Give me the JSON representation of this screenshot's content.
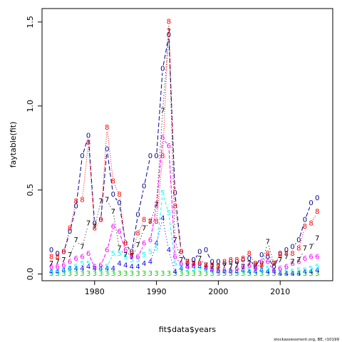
{
  "chart_data": {
    "type": "line",
    "xlabel": "fit$data$years",
    "ylabel": "faytable(fit)",
    "caption": "stockassessment.org, BE, r10199",
    "xlim": [
      1971.5,
      2018.5
    ],
    "ylim": [
      -0.04,
      1.58
    ],
    "x_ticks": [
      1980,
      1990,
      2000,
      2010
    ],
    "y_ticks": [
      0.0,
      0.5,
      1.0,
      1.5
    ],
    "y_tick_labels": [
      "0.0",
      "0.5",
      "1.0",
      "1.5"
    ],
    "x": [
      1973,
      1974,
      1975,
      1976,
      1977,
      1978,
      1979,
      1980,
      1981,
      1982,
      1983,
      1984,
      1985,
      1986,
      1987,
      1988,
      1989,
      1990,
      1991,
      1992,
      1993,
      1994,
      1995,
      1996,
      1997,
      1998,
      1999,
      2000,
      2001,
      2002,
      2003,
      2004,
      2005,
      2006,
      2007,
      2008,
      2009,
      2010,
      2011,
      2012,
      2013,
      2014,
      2015,
      2016,
      2017
    ],
    "series": [
      {
        "name": "0",
        "color": "#00008b",
        "values": [
          0.14,
          0.12,
          0.13,
          0.25,
          0.4,
          0.7,
          0.82,
          0.3,
          0.32,
          0.74,
          0.47,
          0.42,
          0.18,
          0.13,
          0.35,
          0.52,
          0.7,
          0.7,
          1.22,
          1.42,
          0.48,
          0.13,
          0.06,
          0.08,
          0.13,
          0.14,
          0.07,
          0.07,
          0.06,
          0.07,
          0.07,
          0.08,
          0.09,
          0.04,
          0.11,
          0.1,
          0.04,
          0.12,
          0.14,
          0.16,
          0.2,
          0.32,
          0.42,
          0.45,
          null
        ]
      },
      {
        "name": "3",
        "color": "#00cc00",
        "values": [
          0.0,
          0.0,
          0.0,
          0.0,
          0.0,
          0.0,
          0.0,
          0.0,
          0.0,
          0.0,
          0.0,
          0.0,
          0.0,
          0.0,
          0.0,
          0.0,
          0.0,
          0.0,
          0.0,
          0.0,
          0.0,
          0.0,
          0.0,
          0.0,
          0.0,
          0.0,
          0.0,
          0.0,
          0.0,
          0.0,
          0.0,
          0.0,
          0.0,
          0.0,
          0.0,
          0.0,
          0.0,
          0.0,
          0.0,
          0.0,
          0.0,
          0.0,
          0.0,
          0.0,
          null
        ]
      },
      {
        "name": "4",
        "color": "#0000ff",
        "values": [
          0.01,
          0.01,
          0.02,
          0.03,
          0.03,
          0.03,
          0.04,
          0.03,
          0.03,
          0.03,
          0.03,
          0.06,
          0.05,
          0.04,
          0.04,
          0.06,
          0.07,
          0.18,
          0.33,
          0.14,
          0.01,
          0.03,
          0.04,
          0.04,
          0.04,
          0.03,
          0.02,
          0.01,
          0.01,
          0.01,
          0.01,
          0.02,
          0.01,
          0.01,
          0.02,
          0.01,
          0.01,
          0.0,
          0.0,
          0.0,
          0.0,
          0.01,
          0.01,
          0.02,
          null
        ]
      },
      {
        "name": "5",
        "color": "#00ffff",
        "values": [
          0.01,
          0.01,
          0.02,
          0.03,
          0.04,
          0.06,
          0.06,
          0.04,
          0.03,
          0.04,
          0.12,
          0.12,
          0.1,
          0.08,
          0.08,
          0.11,
          0.13,
          0.15,
          0.48,
          0.36,
          0.06,
          0.04,
          0.03,
          0.03,
          0.04,
          0.03,
          0.02,
          0.01,
          0.01,
          0.01,
          0.01,
          0.02,
          0.02,
          0.02,
          0.02,
          0.03,
          0.02,
          0.01,
          0.01,
          0.01,
          0.02,
          0.02,
          0.03,
          0.04,
          null
        ]
      },
      {
        "name": "6",
        "color": "#ff00ff",
        "values": [
          0.04,
          0.04,
          0.05,
          0.07,
          0.09,
          0.1,
          0.12,
          0.04,
          0.05,
          0.14,
          0.28,
          0.25,
          0.14,
          0.1,
          0.1,
          0.18,
          0.2,
          0.4,
          0.81,
          0.76,
          0.1,
          0.06,
          0.04,
          0.05,
          0.06,
          0.04,
          0.03,
          0.02,
          0.02,
          0.02,
          0.03,
          0.04,
          0.05,
          0.03,
          0.07,
          0.07,
          0.02,
          0.03,
          0.04,
          0.06,
          0.07,
          0.09,
          0.1,
          0.1,
          null
        ]
      },
      {
        "name": "7",
        "color": "#000000",
        "values": [
          0.06,
          0.07,
          0.08,
          0.11,
          0.2,
          0.16,
          0.3,
          0.28,
          0.43,
          0.44,
          0.37,
          0.15,
          0.11,
          0.1,
          0.17,
          0.27,
          0.31,
          0.41,
          0.97,
          1.44,
          0.2,
          0.08,
          0.07,
          0.06,
          0.09,
          0.05,
          0.04,
          0.04,
          0.05,
          0.04,
          0.05,
          0.04,
          0.06,
          0.05,
          0.05,
          0.19,
          0.06,
          0.08,
          0.1,
          0.07,
          0.08,
          0.15,
          0.16,
          0.21,
          null
        ]
      },
      {
        "name": "8",
        "color": "#ff0000",
        "values": [
          0.1,
          0.1,
          0.13,
          0.27,
          0.43,
          0.44,
          0.78,
          0.27,
          0.32,
          0.87,
          0.55,
          0.47,
          0.18,
          0.12,
          0.24,
          0.32,
          0.31,
          0.31,
          0.7,
          1.5,
          0.4,
          0.13,
          0.07,
          0.06,
          0.06,
          0.05,
          0.05,
          0.04,
          0.07,
          0.08,
          0.08,
          0.09,
          0.12,
          0.06,
          0.05,
          0.12,
          0.06,
          0.11,
          0.12,
          0.12,
          0.15,
          0.28,
          0.3,
          0.37,
          null
        ]
      }
    ]
  }
}
